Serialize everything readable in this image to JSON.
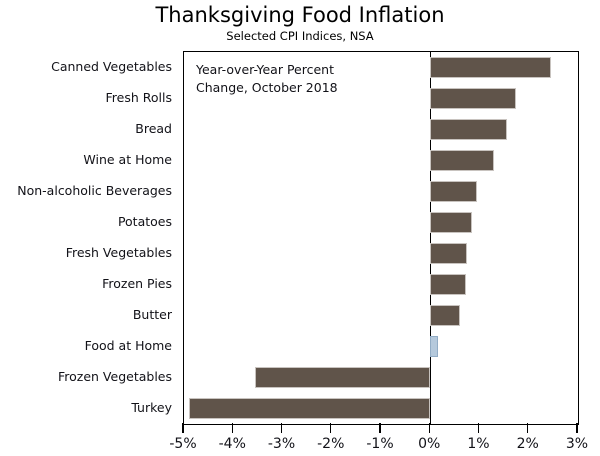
{
  "title": "Thanksgiving Food Inflation",
  "subtitle": "Selected CPI Indices, NSA",
  "annotation": "Year-over-Year Percent\nChange, October 2018",
  "colors": {
    "bar_fill": "#60544A",
    "bar_border": "#C8C3BF",
    "highlight_fill": "#B5C9DC",
    "highlight_border": "#92ACC5",
    "axis": "#000000",
    "text": "#121218",
    "background": "#FFFFFF"
  },
  "chart_data": {
    "type": "bar",
    "orientation": "horizontal",
    "title": "Thanksgiving Food Inflation",
    "subtitle": "Selected CPI Indices, NSA",
    "annotation": "Year-over-Year Percent Change, October 2018",
    "categories": [
      "Canned Vegetables",
      "Fresh Rolls",
      "Bread",
      "Wine at Home",
      "Non-alcoholic Beverages",
      "Potatoes",
      "Fresh Vegetables",
      "Frozen Pies",
      "Butter",
      "Food at Home",
      "Frozen Vegetables",
      "Turkey"
    ],
    "values": [
      2.45,
      1.75,
      1.55,
      1.3,
      0.95,
      0.85,
      0.75,
      0.72,
      0.6,
      0.15,
      -3.55,
      -4.9
    ],
    "units": "percent",
    "highlight_category": "Food at Home",
    "xlabel": "",
    "ylabel": "",
    "xlim": [
      -5,
      3
    ],
    "x_ticks": [
      "-5%",
      "-4%",
      "-3%",
      "-2%",
      "-1%",
      "0%",
      "1%",
      "2%",
      "3%"
    ],
    "x_tick_values": [
      -5,
      -4,
      -3,
      -2,
      -1,
      0,
      1,
      2,
      3
    ],
    "grid": false,
    "legend_position": "none"
  }
}
